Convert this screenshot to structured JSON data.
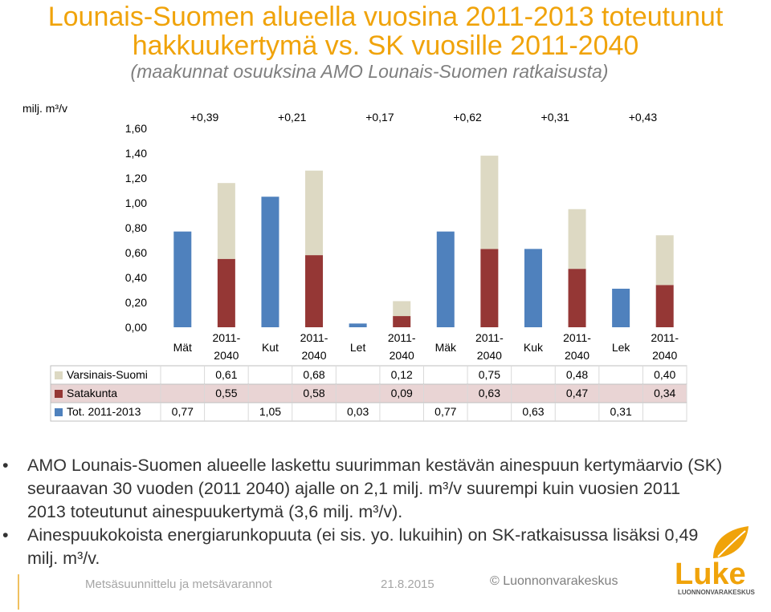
{
  "title_line1": "Lounais-Suomen alueella vuosina 2011-2013 toteutunut",
  "title_line2": "hakkuukertymä vs. SK vuosille 2011-2040",
  "subtitle": "(maakunnat osuuksina AMO Lounais-Suomen ratkaisusta)",
  "chart_data": {
    "type": "bar",
    "stacked": true,
    "unit_label": "milj. m³/v",
    "ylim": [
      0,
      1.6
    ],
    "yticks": [
      "0,00",
      "0,20",
      "0,40",
      "0,60",
      "0,80",
      "1,00",
      "1,20",
      "1,40",
      "1,60"
    ],
    "categories": [
      {
        "region": "Mät",
        "period": [
          "",
          ""
        ]
      },
      {
        "region": "",
        "period": [
          "2011-",
          "2040"
        ]
      },
      {
        "region": "Kut",
        "period": [
          "",
          ""
        ]
      },
      {
        "region": "",
        "period": [
          "2011-",
          "2040"
        ]
      },
      {
        "region": "Let",
        "period": [
          "",
          ""
        ]
      },
      {
        "region": "",
        "period": [
          "2011-",
          "2040"
        ]
      },
      {
        "region": "Mäk",
        "period": [
          "",
          ""
        ]
      },
      {
        "region": "",
        "period": [
          "2011-",
          "2040"
        ]
      },
      {
        "region": "Kuk",
        "period": [
          "",
          ""
        ]
      },
      {
        "region": "",
        "period": [
          "2011-",
          "2040"
        ]
      },
      {
        "region": "Lek",
        "period": [
          "",
          ""
        ]
      },
      {
        "region": "",
        "period": [
          "2011-",
          "2040"
        ]
      }
    ],
    "differences": [
      "+0,39",
      "+0,21",
      "+0,17",
      "+0,62",
      "+0,31",
      "+0,43"
    ],
    "series": [
      {
        "name": "Varsinais-Suomi",
        "color": "#ddd9c3",
        "values": [
          0,
          0.61,
          0,
          0.68,
          0,
          0.12,
          0,
          0.75,
          0,
          0.48,
          0,
          0.4
        ],
        "table": [
          "0,61",
          "0,68",
          "0,12",
          "0,75",
          "0,48",
          "0,40"
        ]
      },
      {
        "name": "Satakunta",
        "color": "#953735",
        "values": [
          0,
          0.55,
          0,
          0.58,
          0,
          0.09,
          0,
          0.63,
          0,
          0.47,
          0,
          0.34
        ],
        "table": [
          "0,55",
          "0,58",
          "0,09",
          "0,63",
          "0,47",
          "0,34"
        ]
      },
      {
        "name": "Tot. 2011-2013",
        "color": "#4f81bd",
        "values": [
          0.77,
          0,
          1.05,
          0,
          0.03,
          0,
          0.77,
          0,
          0.63,
          0,
          0.31,
          0
        ],
        "table": [
          "0,77",
          "1,05",
          "0,03",
          "0,77",
          "0,63",
          "0,31"
        ]
      }
    ]
  },
  "bullets": [
    "AMO Lounais-Suomen alueelle laskettu suurimman kestävän ainespuun kertymäarvio (SK) seuraavan 30 vuoden (2011 2040) ajalle on 2,1 milj. m³/v suurempi kuin vuosien 2011 2013 toteutunut ainespuukertymä (3,6 milj. m³/v).",
    "Ainespuukokoista energiarunkopuuta (ei sis. yo. lukuihin) on SK-ratkaisussa lisäksi 0,49 milj. m³/v."
  ],
  "footer": {
    "left": "Metsäsuunnittelu ja metsävarannot",
    "date": "21.8.2015",
    "copyright": "© Luonnonvarakeskus"
  },
  "logo": {
    "word": "Luke",
    "sub": "LUONNONVARAKESKUS",
    "color": "#f0a30a"
  }
}
